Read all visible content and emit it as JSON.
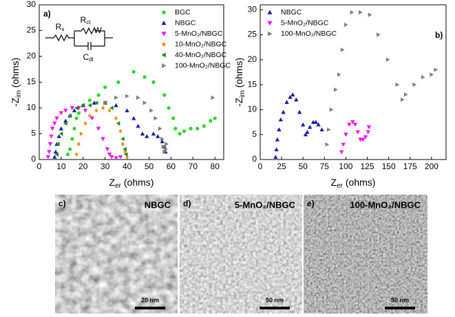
{
  "chart_data": [
    {
      "type": "scatter",
      "panel_label": "a)",
      "x_label": [
        "Z",
        "er",
        " (ohms)"
      ],
      "y_label": [
        "-Z",
        "im",
        " (ohms)"
      ],
      "circuit_labels": [
        [
          "R",
          "s"
        ],
        [
          "R",
          "ct"
        ],
        [
          "W",
          ""
        ],
        [
          "C",
          "dl"
        ]
      ],
      "xlim": [
        0,
        84
      ],
      "ylim": [
        0,
        30
      ],
      "xticks": [
        0,
        10,
        20,
        30,
        40,
        50,
        60,
        70,
        80
      ],
      "yticks": [
        0,
        5,
        10,
        15,
        20,
        25,
        30
      ],
      "series": [
        {
          "name": "BGC",
          "color": "#22dd22",
          "marker": "circle",
          "x": [
            13,
            14,
            15,
            16,
            17,
            18,
            20,
            23,
            27,
            30,
            36,
            43,
            48,
            52,
            57,
            59,
            61,
            62,
            64,
            66,
            69,
            72,
            75,
            78,
            80
          ],
          "values": [
            1,
            2,
            4,
            6,
            8,
            9,
            10.5,
            11.5,
            12.5,
            14,
            15,
            17,
            16,
            15,
            12.5,
            10,
            8,
            6,
            5,
            5.5,
            6,
            6,
            6.5,
            7.5,
            8
          ]
        },
        {
          "name": "NBGC",
          "color": "#1a1aaa",
          "marker": "triangle-up",
          "x": [
            7,
            7.5,
            8,
            9,
            10,
            12,
            14,
            16,
            20,
            25,
            30,
            35,
            40,
            43,
            45,
            47,
            49,
            52,
            54,
            56,
            57,
            57.5
          ],
          "values": [
            0.5,
            1.5,
            3,
            4.5,
            6,
            7.5,
            8.5,
            9.5,
            10.5,
            11,
            11,
            10.5,
            9.5,
            8,
            6.5,
            5,
            4.5,
            5,
            4.5,
            3.5,
            2.5,
            1.5
          ]
        },
        {
          "name": "5-MnO₂/NBGC",
          "color": "#ff00ff",
          "marker": "triangle-down",
          "x": [
            4,
            4.5,
            5,
            5.5,
            6,
            7,
            8,
            10,
            12,
            15,
            18,
            21,
            24,
            27,
            29,
            31,
            32,
            33,
            35,
            37
          ],
          "values": [
            0.5,
            1.5,
            3,
            4.5,
            6,
            7,
            8,
            9,
            9.5,
            10,
            10,
            9.5,
            8,
            6,
            4,
            2,
            1,
            0.5,
            0.3,
            0.5
          ]
        },
        {
          "name": "10-MnO₂/NBGC",
          "color": "#ff8c00",
          "marker": "diamond",
          "x": [
            17,
            18,
            19,
            21,
            23,
            26,
            29,
            32,
            35,
            37,
            38,
            39,
            40
          ],
          "values": [
            1,
            3,
            5,
            7,
            8.5,
            9.5,
            10,
            9.5,
            8,
            5.5,
            3,
            1.5,
            0.5
          ]
        },
        {
          "name": "40-MnO₂/NBGC",
          "color": "#228b22",
          "marker": "triangle-left",
          "x": [
            8,
            8.5,
            10,
            12,
            14,
            17,
            20,
            23,
            26,
            30,
            33,
            36,
            38,
            39,
            39.5
          ],
          "values": [
            1,
            3,
            5,
            7,
            8.5,
            10,
            10.5,
            10.5,
            11,
            11,
            10,
            7,
            4,
            2,
            1
          ]
        },
        {
          "name": "100-MnO₂/NBGC",
          "color": "#808080",
          "marker": "triangle-right",
          "x": [
            30,
            35,
            40,
            45,
            48,
            51,
            53,
            55,
            56,
            56.5,
            57,
            57.5,
            58,
            79
          ],
          "values": [
            11,
            12,
            12.3,
            12,
            11,
            9.5,
            8,
            6,
            4,
            2.5,
            1.5,
            2,
            3,
            12
          ]
        }
      ]
    },
    {
      "type": "scatter",
      "panel_label": "b)",
      "x_label": [
        "Z",
        "er",
        " (ohms)"
      ],
      "y_label": [
        "-Z",
        "im",
        " (ohms)"
      ],
      "xlim": [
        0,
        217
      ],
      "ylim": [
        0,
        31
      ],
      "xticks": [
        0,
        25,
        50,
        75,
        100,
        125,
        150,
        175,
        200
      ],
      "yticks": [
        0,
        5,
        10,
        15,
        20,
        25,
        30
      ],
      "series": [
        {
          "name": "NBGC",
          "color": "#1a1aaa",
          "marker": "triangle-up",
          "x": [
            18,
            19,
            20,
            22,
            24,
            27,
            31,
            35,
            38,
            42,
            46,
            50,
            53,
            55,
            58,
            62,
            65,
            68,
            72
          ],
          "values": [
            0.5,
            2,
            4,
            6,
            8,
            9.5,
            11.5,
            12.5,
            13,
            12,
            9.5,
            7,
            5,
            5.5,
            6.5,
            7.5,
            7.5,
            7,
            6
          ]
        },
        {
          "name": "5-MnO₂/NBGC",
          "color": "#ff00ff",
          "marker": "triangle-down",
          "x": [
            95,
            97,
            100,
            104,
            108,
            111,
            114,
            117,
            120,
            123,
            126,
            127
          ],
          "values": [
            1.5,
            3,
            5,
            7,
            7.5,
            7,
            5.5,
            4,
            4,
            4.5,
            5.5,
            6.5
          ]
        },
        {
          "name": "100-MnO₂/NBGC",
          "color": "#808080",
          "marker": "triangle-right",
          "x": [
            78,
            80,
            83,
            88,
            92,
            96,
            100,
            107,
            117,
            128,
            138,
            149,
            160,
            166,
            170,
            180,
            190,
            200,
            205
          ],
          "values": [
            3,
            6,
            10,
            14,
            17,
            22,
            27,
            29.5,
            29.5,
            29,
            25,
            20,
            15,
            12,
            13,
            15,
            16.5,
            17,
            18
          ]
        }
      ]
    }
  ],
  "panels": [
    {
      "label": "c)",
      "title": "NBGC",
      "scale": "20 nm"
    },
    {
      "label": "d)",
      "title": "5-MnO₂/NBGC",
      "scale": "50 nm"
    },
    {
      "label": "e)",
      "title": "100-MnO₂/NBGC",
      "scale": "50 nm"
    }
  ]
}
